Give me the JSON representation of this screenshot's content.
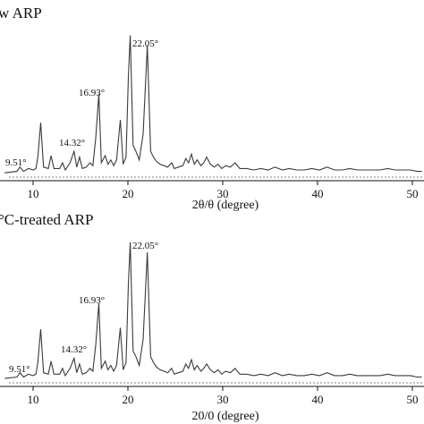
{
  "chart_data": [
    {
      "type": "line",
      "title": "w ARP",
      "xlabel": "2θ/θ (degree)",
      "ylabel": "",
      "xlim": [
        7,
        51
      ],
      "ylim": [
        0,
        1
      ],
      "xticks": [
        10,
        20,
        30,
        40,
        50
      ],
      "grid": false,
      "series": [
        {
          "name": "",
          "points": [
            [
              7.0,
              0.03
            ],
            [
              8.3,
              0.04
            ],
            [
              8.6,
              0.07
            ],
            [
              9.0,
              0.04
            ],
            [
              9.51,
              0.06
            ],
            [
              10.0,
              0.05
            ],
            [
              10.3,
              0.06
            ],
            [
              10.5,
              0.14
            ],
            [
              10.8,
              0.38
            ],
            [
              11.1,
              0.07
            ],
            [
              11.6,
              0.06
            ],
            [
              11.9,
              0.15
            ],
            [
              12.2,
              0.06
            ],
            [
              12.8,
              0.06
            ],
            [
              13.1,
              0.1
            ],
            [
              13.4,
              0.05
            ],
            [
              13.9,
              0.1
            ],
            [
              14.32,
              0.18
            ],
            [
              14.6,
              0.07
            ],
            [
              14.9,
              0.14
            ],
            [
              15.2,
              0.06
            ],
            [
              15.6,
              0.07
            ],
            [
              16.0,
              0.1
            ],
            [
              16.3,
              0.08
            ],
            [
              16.6,
              0.27
            ],
            [
              16.93,
              0.58
            ],
            [
              17.2,
              0.1
            ],
            [
              17.6,
              0.15
            ],
            [
              17.9,
              0.09
            ],
            [
              18.2,
              0.12
            ],
            [
              18.5,
              0.08
            ],
            [
              18.8,
              0.12
            ],
            [
              19.2,
              0.4
            ],
            [
              19.5,
              0.09
            ],
            [
              19.8,
              0.14
            ],
            [
              20.05,
              0.7
            ],
            [
              20.25,
              0.99
            ],
            [
              20.55,
              0.22
            ],
            [
              20.85,
              0.18
            ],
            [
              21.2,
              0.12
            ],
            [
              21.6,
              0.3
            ],
            [
              22.05,
              0.92
            ],
            [
              22.4,
              0.18
            ],
            [
              22.7,
              0.14
            ],
            [
              23.0,
              0.11
            ],
            [
              23.4,
              0.09
            ],
            [
              23.8,
              0.08
            ],
            [
              24.2,
              0.07
            ],
            [
              24.6,
              0.1
            ],
            [
              24.9,
              0.06
            ],
            [
              25.3,
              0.07
            ],
            [
              25.8,
              0.08
            ],
            [
              26.1,
              0.13
            ],
            [
              26.4,
              0.1
            ],
            [
              26.7,
              0.16
            ],
            [
              27.0,
              0.09
            ],
            [
              27.3,
              0.12
            ],
            [
              27.7,
              0.08
            ],
            [
              28.0,
              0.1
            ],
            [
              28.3,
              0.14
            ],
            [
              28.7,
              0.09
            ],
            [
              29.1,
              0.07
            ],
            [
              29.5,
              0.09
            ],
            [
              29.9,
              0.06
            ],
            [
              30.3,
              0.08
            ],
            [
              30.8,
              0.07
            ],
            [
              31.3,
              0.1
            ],
            [
              31.8,
              0.06
            ],
            [
              32.5,
              0.06
            ],
            [
              33.3,
              0.05
            ],
            [
              34.0,
              0.06
            ],
            [
              34.8,
              0.05
            ],
            [
              35.5,
              0.07
            ],
            [
              36.3,
              0.05
            ],
            [
              37.0,
              0.06
            ],
            [
              37.8,
              0.05
            ],
            [
              38.6,
              0.05
            ],
            [
              39.4,
              0.06
            ],
            [
              40.2,
              0.05
            ],
            [
              41.0,
              0.07
            ],
            [
              41.8,
              0.05
            ],
            [
              42.6,
              0.05
            ],
            [
              43.4,
              0.06
            ],
            [
              44.2,
              0.05
            ],
            [
              45.0,
              0.05
            ],
            [
              45.8,
              0.05
            ],
            [
              46.6,
              0.05
            ],
            [
              47.4,
              0.06
            ],
            [
              48.2,
              0.05
            ],
            [
              49.0,
              0.05
            ],
            [
              49.8,
              0.05
            ],
            [
              50.5,
              0.04
            ],
            [
              51.0,
              0.04
            ]
          ]
        }
      ],
      "annotations": [
        {
          "x": 9.51,
          "y": 0.06,
          "text": "9.51°"
        },
        {
          "x": 14.32,
          "y": 0.18,
          "text": "14.32°"
        },
        {
          "x": 16.93,
          "y": 0.58,
          "text": "16.93°"
        },
        {
          "x": 22.05,
          "y": 0.92,
          "text": "22.05°"
        }
      ]
    },
    {
      "type": "line",
      "title": "°C-treated ARP",
      "xlabel": "2θ/θ (degree)",
      "ylabel": "",
      "xlim": [
        7,
        51
      ],
      "ylim": [
        0,
        1
      ],
      "xticks": [
        10,
        20,
        30,
        40,
        50
      ],
      "grid": false,
      "series": [
        {
          "name": "",
          "points": [
            [
              7.0,
              0.03
            ],
            [
              8.3,
              0.04
            ],
            [
              8.6,
              0.07
            ],
            [
              9.0,
              0.04
            ],
            [
              9.51,
              0.06
            ],
            [
              10.0,
              0.05
            ],
            [
              10.3,
              0.06
            ],
            [
              10.5,
              0.14
            ],
            [
              10.8,
              0.37
            ],
            [
              11.1,
              0.07
            ],
            [
              11.6,
              0.06
            ],
            [
              11.9,
              0.15
            ],
            [
              12.2,
              0.06
            ],
            [
              12.8,
              0.06
            ],
            [
              13.1,
              0.1
            ],
            [
              13.4,
              0.05
            ],
            [
              13.9,
              0.1
            ],
            [
              14.32,
              0.17
            ],
            [
              14.6,
              0.07
            ],
            [
              14.9,
              0.13
            ],
            [
              15.2,
              0.06
            ],
            [
              15.6,
              0.07
            ],
            [
              16.0,
              0.1
            ],
            [
              16.3,
              0.08
            ],
            [
              16.6,
              0.26
            ],
            [
              16.93,
              0.55
            ],
            [
              17.2,
              0.1
            ],
            [
              17.6,
              0.15
            ],
            [
              17.9,
              0.09
            ],
            [
              18.2,
              0.12
            ],
            [
              18.5,
              0.08
            ],
            [
              18.8,
              0.12
            ],
            [
              19.2,
              0.38
            ],
            [
              19.5,
              0.09
            ],
            [
              19.8,
              0.14
            ],
            [
              20.05,
              0.68
            ],
            [
              20.25,
              0.97
            ],
            [
              20.55,
              0.22
            ],
            [
              20.85,
              0.18
            ],
            [
              21.2,
              0.12
            ],
            [
              21.6,
              0.3
            ],
            [
              22.05,
              0.9
            ],
            [
              22.4,
              0.18
            ],
            [
              22.7,
              0.14
            ],
            [
              23.0,
              0.11
            ],
            [
              23.4,
              0.09
            ],
            [
              23.8,
              0.08
            ],
            [
              24.2,
              0.07
            ],
            [
              24.6,
              0.1
            ],
            [
              24.9,
              0.06
            ],
            [
              25.3,
              0.07
            ],
            [
              25.8,
              0.08
            ],
            [
              26.1,
              0.13
            ],
            [
              26.4,
              0.1
            ],
            [
              26.7,
              0.16
            ],
            [
              27.0,
              0.09
            ],
            [
              27.3,
              0.12
            ],
            [
              27.7,
              0.08
            ],
            [
              28.0,
              0.1
            ],
            [
              28.3,
              0.13
            ],
            [
              28.7,
              0.09
            ],
            [
              29.1,
              0.07
            ],
            [
              29.5,
              0.09
            ],
            [
              29.9,
              0.06
            ],
            [
              30.3,
              0.08
            ],
            [
              30.8,
              0.07
            ],
            [
              31.3,
              0.1
            ],
            [
              31.8,
              0.06
            ],
            [
              32.5,
              0.06
            ],
            [
              33.3,
              0.05
            ],
            [
              34.0,
              0.06
            ],
            [
              34.8,
              0.05
            ],
            [
              35.5,
              0.07
            ],
            [
              36.3,
              0.05
            ],
            [
              37.0,
              0.06
            ],
            [
              37.8,
              0.05
            ],
            [
              38.6,
              0.05
            ],
            [
              39.4,
              0.06
            ],
            [
              40.2,
              0.05
            ],
            [
              41.0,
              0.07
            ],
            [
              41.8,
              0.05
            ],
            [
              42.6,
              0.05
            ],
            [
              43.4,
              0.06
            ],
            [
              44.2,
              0.05
            ],
            [
              45.0,
              0.05
            ],
            [
              45.8,
              0.05
            ],
            [
              46.6,
              0.05
            ],
            [
              47.4,
              0.06
            ],
            [
              48.2,
              0.05
            ],
            [
              49.0,
              0.05
            ],
            [
              49.8,
              0.05
            ],
            [
              50.5,
              0.04
            ],
            [
              51.0,
              0.04
            ]
          ]
        }
      ],
      "annotations": [
        {
          "x": 9.51,
          "y": 0.06,
          "text": "9.51°"
        },
        {
          "x": 14.32,
          "y": 0.17,
          "text": "14.32°"
        },
        {
          "x": 16.93,
          "y": 0.55,
          "text": "16.93°"
        },
        {
          "x": 22.05,
          "y": 0.9,
          "text": "22.05°"
        }
      ]
    }
  ],
  "panel_labels": [
    "w ARP",
    "°C-treated ARP"
  ],
  "axis_labels": [
    "2θ/θ (degree)",
    "20/0 (degree)"
  ],
  "colors": {
    "line": "#3a3a3a",
    "axis": "#111111",
    "baseline": "#555555"
  }
}
